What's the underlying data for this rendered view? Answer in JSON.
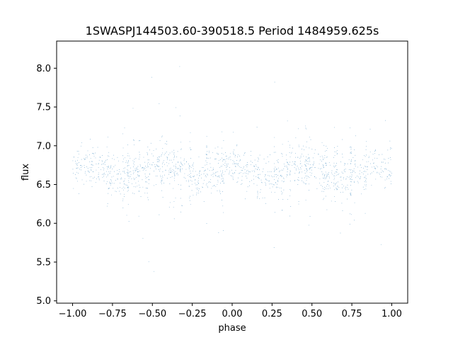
{
  "chart_data": {
    "type": "scatter",
    "title": "1SWASPJ144503.60-390518.5 Period 1484959.625s",
    "xlabel": "phase",
    "ylabel": "flux",
    "xlim": [
      -1.1,
      1.1
    ],
    "ylim": [
      4.97,
      8.35
    ],
    "xticks": [
      -1.0,
      -0.75,
      -0.5,
      -0.25,
      0.0,
      0.25,
      0.5,
      0.75,
      1.0
    ],
    "xtick_labels": [
      "−1.00",
      "−0.75",
      "−0.50",
      "−0.25",
      "0.00",
      "0.25",
      "0.50",
      "0.75",
      "1.00"
    ],
    "yticks": [
      5.0,
      5.5,
      6.0,
      6.5,
      7.0,
      7.5,
      8.0
    ],
    "ytick_labels": [
      "5.0",
      "5.5",
      "6.0",
      "6.5",
      "7.0",
      "7.5",
      "8.0"
    ],
    "grid": false,
    "point_color": "#1f77b4",
    "phase_range": [
      -1.0,
      1.0
    ],
    "flux_median": 6.68,
    "flux_core_range": [
      6.1,
      7.25
    ],
    "flux_outlier_range": [
      5.15,
      8.3
    ],
    "n_points": 30000
  }
}
